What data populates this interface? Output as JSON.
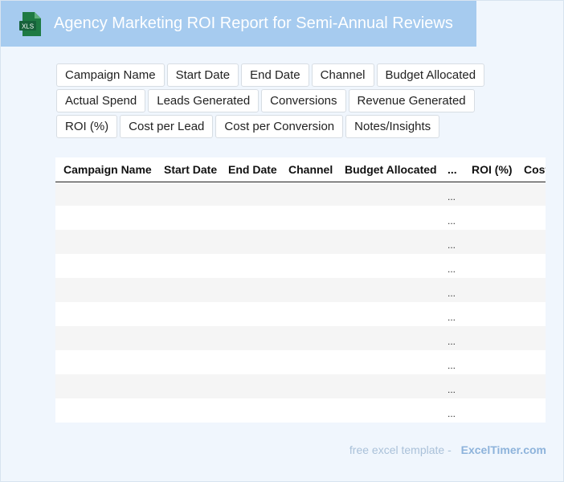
{
  "header": {
    "title": "Agency Marketing ROI Report for Semi-Annual Reviews",
    "icon": "xls-file-icon",
    "icon_label": "XLS",
    "icon_color": "#1e7a43"
  },
  "columns": [
    "Campaign Name",
    "Start Date",
    "End Date",
    "Channel",
    "Budget Allocated",
    "Actual Spend",
    "Leads Generated",
    "Conversions",
    "Revenue Generated",
    "ROI (%)",
    "Cost per Lead",
    "Cost per Conversion",
    "Notes/Insights"
  ],
  "table": {
    "headers": [
      "Campaign Name",
      "Start Date",
      "End Date",
      "Channel",
      "Budget Allocated",
      "...",
      "ROI (%)",
      "Cost"
    ],
    "rows": [
      [
        "",
        "",
        "",
        "",
        "",
        "...",
        "",
        ""
      ],
      [
        "",
        "",
        "",
        "",
        "",
        "...",
        "",
        ""
      ],
      [
        "",
        "",
        "",
        "",
        "",
        "...",
        "",
        ""
      ],
      [
        "",
        "",
        "",
        "",
        "",
        "...",
        "",
        ""
      ],
      [
        "",
        "",
        "",
        "",
        "",
        "...",
        "",
        ""
      ],
      [
        "",
        "",
        "",
        "",
        "",
        "...",
        "",
        ""
      ],
      [
        "",
        "",
        "",
        "",
        "",
        "...",
        "",
        ""
      ],
      [
        "",
        "",
        "",
        "",
        "",
        "...",
        "",
        ""
      ],
      [
        "",
        "",
        "",
        "",
        "",
        "...",
        "",
        ""
      ],
      [
        "",
        "",
        "",
        "",
        "",
        "...",
        "",
        ""
      ]
    ]
  },
  "footer": {
    "free_text": "free excel template -",
    "brand": "ExcelTimer.com"
  },
  "colors": {
    "header_bg": "#a6cbef",
    "page_bg": "#f0f6fd",
    "row_alt": "#f5f5f5"
  }
}
